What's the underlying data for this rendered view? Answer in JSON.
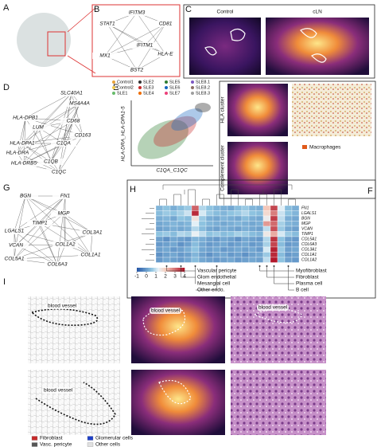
{
  "panel_labels": [
    "A",
    "B",
    "C",
    "D",
    "E",
    "F",
    "G",
    "H",
    "I"
  ],
  "b_nodes": [
    "IFITM3",
    "STAT1",
    "CD81",
    "IFITM1",
    "HLA-E",
    "MX1",
    "BST2"
  ],
  "c_titles": [
    "Control",
    "cLN"
  ],
  "d_nodes": [
    {
      "label": "SLC40A1",
      "color": "#3b3bc8"
    },
    {
      "label": "MS4A4A",
      "color": "#3b3bc8"
    },
    {
      "label": "HLA-DPB1",
      "color": "#e07b2a"
    },
    {
      "label": "CD68",
      "color": "#3b3bc8"
    },
    {
      "label": "LUM",
      "color": "#e07b2a"
    },
    {
      "label": "CD163",
      "color": "#3b3bc8"
    },
    {
      "label": "HLA-DPA1",
      "color": "#e07b2a"
    },
    {
      "label": "C1QA",
      "color": "#3b3bc8"
    },
    {
      "label": "HLA-DRA",
      "color": "#e07b2a"
    },
    {
      "label": "HLA-DRB5",
      "color": "#e07b2a"
    },
    {
      "label": "C1QB",
      "color": "#3b3bc8"
    },
    {
      "label": "C1QC",
      "color": "#3b3bc8"
    }
  ],
  "e": {
    "legend": [
      {
        "name": "Control1",
        "color": "#e8a33a"
      },
      {
        "name": "SLE2",
        "color": "#333333"
      },
      {
        "name": "SLE5",
        "color": "#2e7d32"
      },
      {
        "name": "SLE8.1",
        "color": "#7e57c2"
      },
      {
        "name": "Control2",
        "color": "#f2c94c"
      },
      {
        "name": "SLE3",
        "color": "#c62828"
      },
      {
        "name": "SLE6",
        "color": "#1565c0"
      },
      {
        "name": "SLE8.2",
        "color": "#8d6e63"
      },
      {
        "name": "SLE1",
        "color": "#66bb6a"
      },
      {
        "name": "SLE4",
        "color": "#ef6c00"
      },
      {
        "name": "SLE7",
        "color": "#ec407a"
      },
      {
        "name": "SLE8.3",
        "color": "#9e9e9e"
      }
    ],
    "y_label": "HLA-DRA_HLA-DPA1-5",
    "x_label": "C1QA_C1QC"
  },
  "f": {
    "row_labels": [
      "HLA cluster",
      "Complement cluster"
    ],
    "legend": "Macrophages"
  },
  "g_nodes": [
    "BGN",
    "FN1",
    "MGP",
    "TIMP1",
    "LGALS1",
    "COL3A1",
    "COL1A2",
    "VCAN",
    "COL1A1",
    "COL5A1",
    "COL6A3"
  ],
  "heatmap": {
    "row_labels": [
      "FN1",
      "LGALS1",
      "BGN",
      "MGP",
      "VCAN",
      "TIMP1",
      "COL5A1",
      "COL6A3",
      "COL3A1",
      "COL1A1",
      "COL1A2"
    ],
    "values": [
      [
        0.3,
        0.5,
        0.2,
        0.4,
        0.6,
        3.2,
        0.8,
        0.5,
        0.3,
        0.2,
        0.1,
        0.4,
        0.6,
        0.3,
        0.2,
        2.1,
        3.5,
        1.2,
        0.4,
        0.2
      ],
      [
        0.4,
        0.6,
        0.5,
        0.7,
        1.0,
        3.8,
        1.1,
        0.6,
        0.4,
        0.3,
        0.5,
        0.6,
        0.8,
        0.5,
        0.4,
        1.8,
        2.9,
        1.0,
        0.5,
        0.3
      ],
      [
        0.2,
        0.3,
        0.1,
        0.5,
        0.4,
        1.6,
        0.6,
        0.2,
        0.1,
        0.3,
        0.2,
        0.1,
        0.4,
        0.2,
        0.1,
        1.4,
        3.6,
        0.9,
        0.2,
        0.1
      ],
      [
        0.1,
        0.2,
        0.3,
        0.2,
        0.3,
        1.2,
        0.5,
        0.3,
        0.2,
        0.1,
        0.2,
        0.3,
        0.2,
        0.1,
        0.2,
        2.6,
        3.1,
        0.7,
        0.3,
        0.2
      ],
      [
        0.0,
        0.1,
        0.2,
        0.1,
        0.2,
        0.8,
        0.4,
        0.1,
        0.0,
        0.2,
        0.1,
        0.0,
        0.2,
        0.1,
        0.0,
        0.9,
        3.4,
        0.6,
        0.1,
        0.0
      ],
      [
        0.5,
        0.6,
        0.4,
        0.8,
        0.7,
        1.3,
        0.9,
        0.5,
        0.6,
        0.4,
        0.5,
        0.7,
        0.6,
        0.4,
        0.3,
        1.5,
        2.4,
        1.1,
        0.6,
        0.4
      ],
      [
        0.0,
        -0.2,
        0.1,
        0.0,
        -0.1,
        0.3,
        0.2,
        0.0,
        -0.1,
        0.1,
        0.0,
        -0.2,
        0.1,
        0.0,
        -0.1,
        0.8,
        3.7,
        0.5,
        0.0,
        -0.1
      ],
      [
        -0.1,
        0.0,
        0.1,
        -0.2,
        0.0,
        0.4,
        0.1,
        -0.1,
        0.0,
        0.1,
        -0.1,
        0.0,
        0.1,
        -0.1,
        0.0,
        0.7,
        3.5,
        0.4,
        -0.1,
        0.0
      ],
      [
        0.0,
        0.1,
        -0.1,
        0.0,
        0.2,
        0.5,
        0.1,
        0.0,
        0.1,
        -0.1,
        0.0,
        0.1,
        0.0,
        0.1,
        -0.1,
        1.1,
        3.9,
        0.6,
        0.0,
        0.1
      ],
      [
        -0.2,
        0.0,
        0.1,
        -0.1,
        0.0,
        0.3,
        0.0,
        -0.2,
        0.0,
        0.1,
        -0.1,
        0.0,
        -0.2,
        0.0,
        0.1,
        0.6,
        3.8,
        0.4,
        -0.1,
        0.0
      ],
      [
        -0.1,
        0.1,
        0.0,
        -0.1,
        0.1,
        0.4,
        0.1,
        0.0,
        -0.1,
        0.0,
        0.1,
        -0.1,
        0.0,
        0.1,
        0.0,
        0.9,
        4.0,
        0.5,
        0.0,
        -0.1
      ]
    ],
    "colorbar_ticks": [
      -1,
      0,
      1,
      2,
      3,
      4
    ],
    "annotations_left": [
      "Vascular pericyte",
      "Glom endothelial",
      "Mesangial cell",
      "Other endo."
    ],
    "annotations_right": [
      "Myofibroblast",
      "Fibroblast",
      "Plasma cell",
      "B cell"
    ]
  },
  "i": {
    "image_labels": [
      "blood vessel",
      "blood vessel",
      "blood vessel",
      "blood vessel"
    ],
    "legend": [
      {
        "name": "Fibroblast",
        "color": "#c62828"
      },
      {
        "name": "Glomerular cells",
        "color": "#1e40c8"
      },
      {
        "name": "Vasc. pericyte",
        "color": "#555555"
      },
      {
        "name": "Other cells",
        "color": "#e0e0e0"
      }
    ]
  }
}
